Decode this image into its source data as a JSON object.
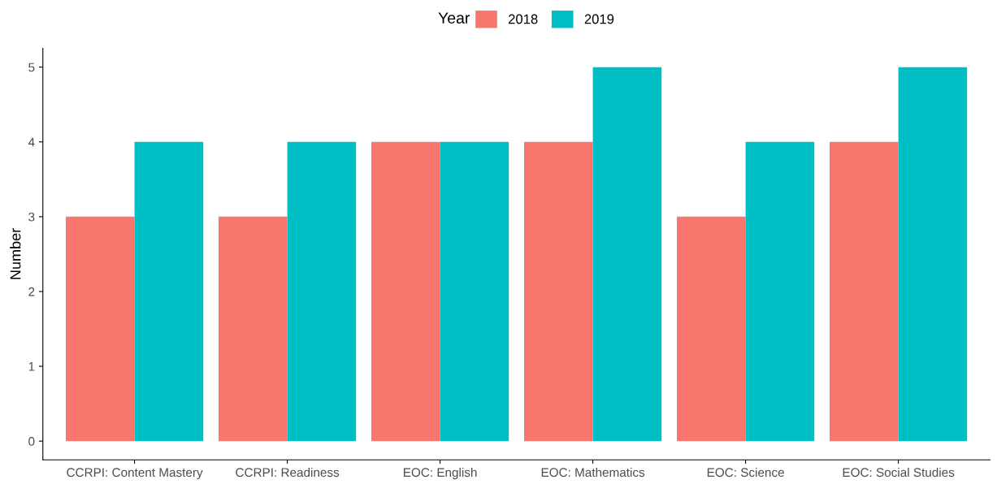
{
  "chart_data": {
    "type": "bar",
    "ylabel": "Number",
    "legend_title": "Year",
    "legend": "top",
    "grid": false,
    "categories": [
      "CCRPI: Content Mastery",
      "CCRPI: Readiness",
      "EOC: English",
      "EOC: Mathematics",
      "EOC: Science",
      "EOC: Social Studies"
    ],
    "series": [
      {
        "name": "2018",
        "color": "#f8766d",
        "values": [
          3,
          3,
          4,
          4,
          3,
          4
        ]
      },
      {
        "name": "2019",
        "color": "#00bfc4",
        "values": [
          4,
          4,
          4,
          5,
          4,
          5
        ]
      }
    ],
    "ylim": [
      -0.25,
      5.25
    ],
    "yticks": [
      0,
      1,
      2,
      3,
      4,
      5
    ]
  }
}
